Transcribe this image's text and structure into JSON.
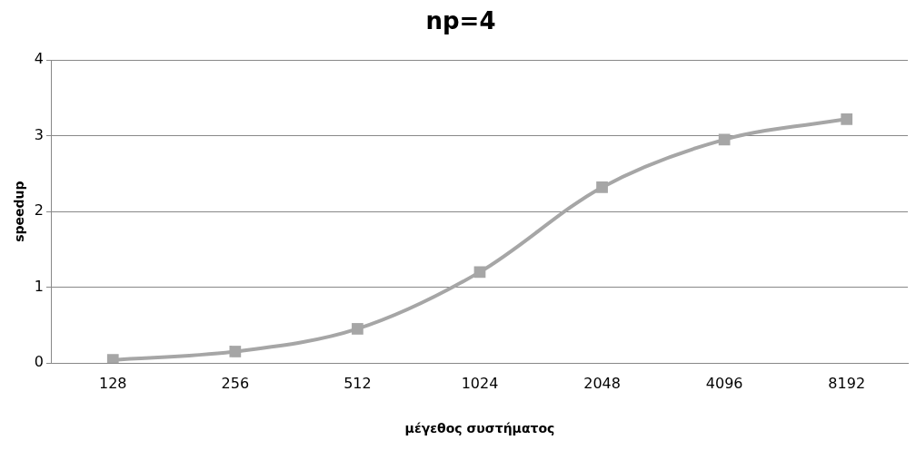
{
  "chart_data": {
    "type": "line",
    "title": "np=4",
    "xlabel": "μέγεθος συστήματος",
    "ylabel": "speedup",
    "categories": [
      "128",
      "256",
      "512",
      "1024",
      "2048",
      "4096",
      "8192"
    ],
    "series": [
      {
        "color": "#a6a6a6",
        "values": [
          0.04,
          0.15,
          0.45,
          1.2,
          2.32,
          2.95,
          3.22
        ]
      }
    ],
    "ylim": [
      0,
      4
    ],
    "yticks": [
      0,
      1,
      2,
      3,
      4
    ],
    "grid": "y",
    "legend": false,
    "marker": "square",
    "line_style": "solid"
  }
}
